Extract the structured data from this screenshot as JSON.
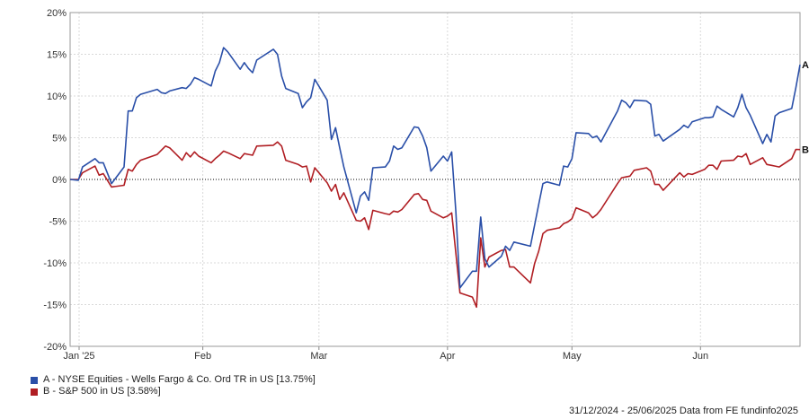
{
  "chart_data": {
    "type": "line",
    "y_axis": {
      "ticks": [
        20,
        15,
        10,
        5,
        0,
        -5,
        -10,
        -15,
        -20
      ],
      "tick_labels": [
        "20%",
        "15%",
        "10%",
        "5%",
        "0%",
        "-5%",
        "-10%",
        "-15%",
        "-20%"
      ],
      "range": [
        -20,
        20
      ]
    },
    "x_axis": {
      "range": [
        "2024-12-31",
        "2025-06-25"
      ],
      "ticks": [
        {
          "date": "2025-01-01",
          "label": "Jan '25"
        },
        {
          "date": "2025-02-01",
          "label": "Feb"
        },
        {
          "date": "2025-03-01",
          "label": "Mar"
        },
        {
          "date": "2025-04-01",
          "label": "Apr"
        },
        {
          "date": "2025-05-01",
          "label": "May"
        },
        {
          "date": "2025-06-01",
          "label": "Jun"
        }
      ]
    },
    "grid": true,
    "zero_line": "dotted",
    "series": [
      {
        "name": "A - NYSE Equities - Wells Fargo & Co. Ord TR in US [13.75%]",
        "end_label": "A",
        "color": "#2a4fa8",
        "points": [
          [
            "2024-12-31",
            0
          ],
          [
            "2025-01-02",
            -0.1
          ],
          [
            "2025-01-03",
            1.5
          ],
          [
            "2025-01-06",
            2.5
          ],
          [
            "2025-01-07",
            2.0
          ],
          [
            "2025-01-08",
            2.0
          ],
          [
            "2025-01-10",
            -0.5
          ],
          [
            "2025-01-13",
            1.5
          ],
          [
            "2025-01-14",
            8.2
          ],
          [
            "2025-01-15",
            8.2
          ],
          [
            "2025-01-16",
            9.8
          ],
          [
            "2025-01-17",
            10.2
          ],
          [
            "2025-01-21",
            10.8
          ],
          [
            "2025-01-22",
            10.4
          ],
          [
            "2025-01-23",
            10.3
          ],
          [
            "2025-01-24",
            10.6
          ],
          [
            "2025-01-27",
            11.0
          ],
          [
            "2025-01-28",
            10.9
          ],
          [
            "2025-01-29",
            11.4
          ],
          [
            "2025-01-30",
            12.2
          ],
          [
            "2025-01-31",
            12.0
          ],
          [
            "2025-02-03",
            11.2
          ],
          [
            "2025-02-04",
            13.0
          ],
          [
            "2025-02-05",
            14.0
          ],
          [
            "2025-02-06",
            15.8
          ],
          [
            "2025-02-07",
            15.3
          ],
          [
            "2025-02-10",
            13.2
          ],
          [
            "2025-02-11",
            14.0
          ],
          [
            "2025-02-12",
            13.3
          ],
          [
            "2025-02-13",
            12.8
          ],
          [
            "2025-02-14",
            14.3
          ],
          [
            "2025-02-18",
            15.6
          ],
          [
            "2025-02-19",
            15.0
          ],
          [
            "2025-02-20",
            12.4
          ],
          [
            "2025-02-21",
            10.9
          ],
          [
            "2025-02-24",
            10.3
          ],
          [
            "2025-02-25",
            8.6
          ],
          [
            "2025-02-26",
            9.3
          ],
          [
            "2025-02-27",
            9.8
          ],
          [
            "2025-02-28",
            12.0
          ],
          [
            "2025-03-03",
            9.5
          ],
          [
            "2025-03-04",
            4.8
          ],
          [
            "2025-03-05",
            6.2
          ],
          [
            "2025-03-06",
            3.8
          ],
          [
            "2025-03-07",
            1.5
          ],
          [
            "2025-03-10",
            -4.0
          ],
          [
            "2025-03-11",
            -2.0
          ],
          [
            "2025-03-12",
            -1.5
          ],
          [
            "2025-03-13",
            -2.5
          ],
          [
            "2025-03-14",
            1.4
          ],
          [
            "2025-03-17",
            1.5
          ],
          [
            "2025-03-18",
            2.2
          ],
          [
            "2025-03-19",
            4.0
          ],
          [
            "2025-03-20",
            3.6
          ],
          [
            "2025-03-21",
            3.8
          ],
          [
            "2025-03-24",
            6.3
          ],
          [
            "2025-03-25",
            6.2
          ],
          [
            "2025-03-26",
            5.2
          ],
          [
            "2025-03-27",
            3.8
          ],
          [
            "2025-03-28",
            1.0
          ],
          [
            "2025-03-31",
            2.8
          ],
          [
            "2025-04-01",
            2.2
          ],
          [
            "2025-04-02",
            3.3
          ],
          [
            "2025-04-03",
            -3.8
          ],
          [
            "2025-04-04",
            -13.0
          ],
          [
            "2025-04-07",
            -11.0
          ],
          [
            "2025-04-08",
            -11.0
          ],
          [
            "2025-04-09",
            -4.5
          ],
          [
            "2025-04-10",
            -9.5
          ],
          [
            "2025-04-11",
            -10.5
          ],
          [
            "2025-04-14",
            -9.2
          ],
          [
            "2025-04-15",
            -8.0
          ],
          [
            "2025-04-16",
            -8.5
          ],
          [
            "2025-04-17",
            -7.5
          ],
          [
            "2025-04-21",
            -8.0
          ],
          [
            "2025-04-22",
            -5.5
          ],
          [
            "2025-04-23",
            -3.0
          ],
          [
            "2025-04-24",
            -0.5
          ],
          [
            "2025-04-25",
            -0.3
          ],
          [
            "2025-04-28",
            -0.7
          ],
          [
            "2025-04-29",
            1.6
          ],
          [
            "2025-04-30",
            1.5
          ],
          [
            "2025-05-01",
            2.5
          ],
          [
            "2025-05-02",
            5.6
          ],
          [
            "2025-05-05",
            5.5
          ],
          [
            "2025-05-06",
            5.0
          ],
          [
            "2025-05-07",
            5.2
          ],
          [
            "2025-05-08",
            4.5
          ],
          [
            "2025-05-12",
            8.2
          ],
          [
            "2025-05-13",
            9.5
          ],
          [
            "2025-05-14",
            9.2
          ],
          [
            "2025-05-15",
            8.6
          ],
          [
            "2025-05-16",
            9.5
          ],
          [
            "2025-05-19",
            9.4
          ],
          [
            "2025-05-20",
            9.0
          ],
          [
            "2025-05-21",
            5.2
          ],
          [
            "2025-05-22",
            5.4
          ],
          [
            "2025-05-23",
            4.6
          ],
          [
            "2025-05-27",
            6.0
          ],
          [
            "2025-05-28",
            6.5
          ],
          [
            "2025-05-29",
            6.2
          ],
          [
            "2025-05-30",
            6.9
          ],
          [
            "2025-06-02",
            7.4
          ],
          [
            "2025-06-03",
            7.4
          ],
          [
            "2025-06-04",
            7.5
          ],
          [
            "2025-06-05",
            8.8
          ],
          [
            "2025-06-06",
            8.4
          ],
          [
            "2025-06-09",
            7.5
          ],
          [
            "2025-06-10",
            8.6
          ],
          [
            "2025-06-11",
            10.2
          ],
          [
            "2025-06-12",
            8.6
          ],
          [
            "2025-06-13",
            7.7
          ],
          [
            "2025-06-16",
            4.3
          ],
          [
            "2025-06-17",
            5.4
          ],
          [
            "2025-06-18",
            4.5
          ],
          [
            "2025-06-19",
            7.6
          ],
          [
            "2025-06-20",
            8.0
          ],
          [
            "2025-06-23",
            8.5
          ],
          [
            "2025-06-24",
            11.0
          ],
          [
            "2025-06-25",
            13.75
          ]
        ]
      },
      {
        "name": "B - S&P 500 in US [3.58%]",
        "end_label": "B",
        "color": "#b01e23",
        "points": [
          [
            "2024-12-31",
            0
          ],
          [
            "2025-01-02",
            0.0
          ],
          [
            "2025-01-03",
            0.8
          ],
          [
            "2025-01-06",
            1.6
          ],
          [
            "2025-01-07",
            0.5
          ],
          [
            "2025-01-08",
            0.7
          ],
          [
            "2025-01-10",
            -0.9
          ],
          [
            "2025-01-13",
            -0.7
          ],
          [
            "2025-01-14",
            1.2
          ],
          [
            "2025-01-15",
            1.0
          ],
          [
            "2025-01-16",
            1.8
          ],
          [
            "2025-01-17",
            2.3
          ],
          [
            "2025-01-21",
            3.0
          ],
          [
            "2025-01-22",
            3.5
          ],
          [
            "2025-01-23",
            4.0
          ],
          [
            "2025-01-24",
            3.8
          ],
          [
            "2025-01-27",
            2.3
          ],
          [
            "2025-01-28",
            3.2
          ],
          [
            "2025-01-29",
            2.7
          ],
          [
            "2025-01-30",
            3.3
          ],
          [
            "2025-01-31",
            2.8
          ],
          [
            "2025-02-03",
            2.0
          ],
          [
            "2025-02-04",
            2.5
          ],
          [
            "2025-02-05",
            2.9
          ],
          [
            "2025-02-06",
            3.4
          ],
          [
            "2025-02-07",
            3.2
          ],
          [
            "2025-02-10",
            2.5
          ],
          [
            "2025-02-11",
            3.1
          ],
          [
            "2025-02-12",
            3.0
          ],
          [
            "2025-02-13",
            2.9
          ],
          [
            "2025-02-14",
            4.0
          ],
          [
            "2025-02-18",
            4.1
          ],
          [
            "2025-02-19",
            4.5
          ],
          [
            "2025-02-20",
            4.0
          ],
          [
            "2025-02-21",
            2.3
          ],
          [
            "2025-02-24",
            1.8
          ],
          [
            "2025-02-25",
            1.5
          ],
          [
            "2025-02-26",
            1.6
          ],
          [
            "2025-02-27",
            -0.3
          ],
          [
            "2025-02-28",
            1.4
          ],
          [
            "2025-03-03",
            -0.4
          ],
          [
            "2025-03-04",
            -1.4
          ],
          [
            "2025-03-05",
            -0.6
          ],
          [
            "2025-03-06",
            -2.4
          ],
          [
            "2025-03-07",
            -1.6
          ],
          [
            "2025-03-10",
            -4.9
          ],
          [
            "2025-03-11",
            -5.0
          ],
          [
            "2025-03-12",
            -4.6
          ],
          [
            "2025-03-13",
            -6.0
          ],
          [
            "2025-03-14",
            -3.7
          ],
          [
            "2025-03-17",
            -4.1
          ],
          [
            "2025-03-18",
            -4.2
          ],
          [
            "2025-03-19",
            -3.8
          ],
          [
            "2025-03-20",
            -3.9
          ],
          [
            "2025-03-21",
            -3.6
          ],
          [
            "2025-03-24",
            -1.8
          ],
          [
            "2025-03-25",
            -1.7
          ],
          [
            "2025-03-26",
            -2.4
          ],
          [
            "2025-03-27",
            -2.5
          ],
          [
            "2025-03-28",
            -3.8
          ],
          [
            "2025-03-31",
            -4.6
          ],
          [
            "2025-04-01",
            -4.4
          ],
          [
            "2025-04-02",
            -4.0
          ],
          [
            "2025-04-03",
            -8.8
          ],
          [
            "2025-04-04",
            -13.6
          ],
          [
            "2025-04-07",
            -14.1
          ],
          [
            "2025-04-08",
            -15.3
          ],
          [
            "2025-04-09",
            -7.0
          ],
          [
            "2025-04-10",
            -10.5
          ],
          [
            "2025-04-11",
            -9.3
          ],
          [
            "2025-04-14",
            -8.5
          ],
          [
            "2025-04-15",
            -8.4
          ],
          [
            "2025-04-16",
            -10.5
          ],
          [
            "2025-04-17",
            -10.5
          ],
          [
            "2025-04-21",
            -12.4
          ],
          [
            "2025-04-22",
            -10.1
          ],
          [
            "2025-04-23",
            -8.6
          ],
          [
            "2025-04-24",
            -6.5
          ],
          [
            "2025-04-25",
            -6.1
          ],
          [
            "2025-04-28",
            -5.8
          ],
          [
            "2025-04-29",
            -5.3
          ],
          [
            "2025-04-30",
            -5.1
          ],
          [
            "2025-05-01",
            -4.7
          ],
          [
            "2025-05-02",
            -3.4
          ],
          [
            "2025-05-05",
            -4.0
          ],
          [
            "2025-05-06",
            -4.6
          ],
          [
            "2025-05-07",
            -4.2
          ],
          [
            "2025-05-08",
            -3.6
          ],
          [
            "2025-05-12",
            -0.5
          ],
          [
            "2025-05-13",
            0.2
          ],
          [
            "2025-05-14",
            0.3
          ],
          [
            "2025-05-15",
            0.4
          ],
          [
            "2025-05-16",
            1.1
          ],
          [
            "2025-05-19",
            1.4
          ],
          [
            "2025-05-20",
            1.0
          ],
          [
            "2025-05-21",
            -0.6
          ],
          [
            "2025-05-22",
            -0.6
          ],
          [
            "2025-05-23",
            -1.3
          ],
          [
            "2025-05-27",
            0.8
          ],
          [
            "2025-05-28",
            0.3
          ],
          [
            "2025-05-29",
            0.7
          ],
          [
            "2025-05-30",
            0.6
          ],
          [
            "2025-06-02",
            1.2
          ],
          [
            "2025-06-03",
            1.7
          ],
          [
            "2025-06-04",
            1.7
          ],
          [
            "2025-06-05",
            1.2
          ],
          [
            "2025-06-06",
            2.2
          ],
          [
            "2025-06-09",
            2.3
          ],
          [
            "2025-06-10",
            2.8
          ],
          [
            "2025-06-11",
            2.7
          ],
          [
            "2025-06-12",
            3.1
          ],
          [
            "2025-06-13",
            1.8
          ],
          [
            "2025-06-16",
            2.6
          ],
          [
            "2025-06-17",
            1.8
          ],
          [
            "2025-06-18",
            1.7
          ],
          [
            "2025-06-19",
            1.6
          ],
          [
            "2025-06-20",
            1.5
          ],
          [
            "2025-06-23",
            2.5
          ],
          [
            "2025-06-24",
            3.6
          ],
          [
            "2025-06-25",
            3.58
          ]
        ]
      }
    ]
  },
  "legend": {
    "items": [
      {
        "label": "A - NYSE Equities - Wells Fargo & Co. Ord TR in US [13.75%]",
        "color": "#2a4fa8"
      },
      {
        "label": "B - S&P 500 in US [3.58%]",
        "color": "#b01e23"
      }
    ]
  },
  "footer": {
    "text": "31/12/2024 - 25/06/2025 Data from FE fundinfo2025"
  }
}
